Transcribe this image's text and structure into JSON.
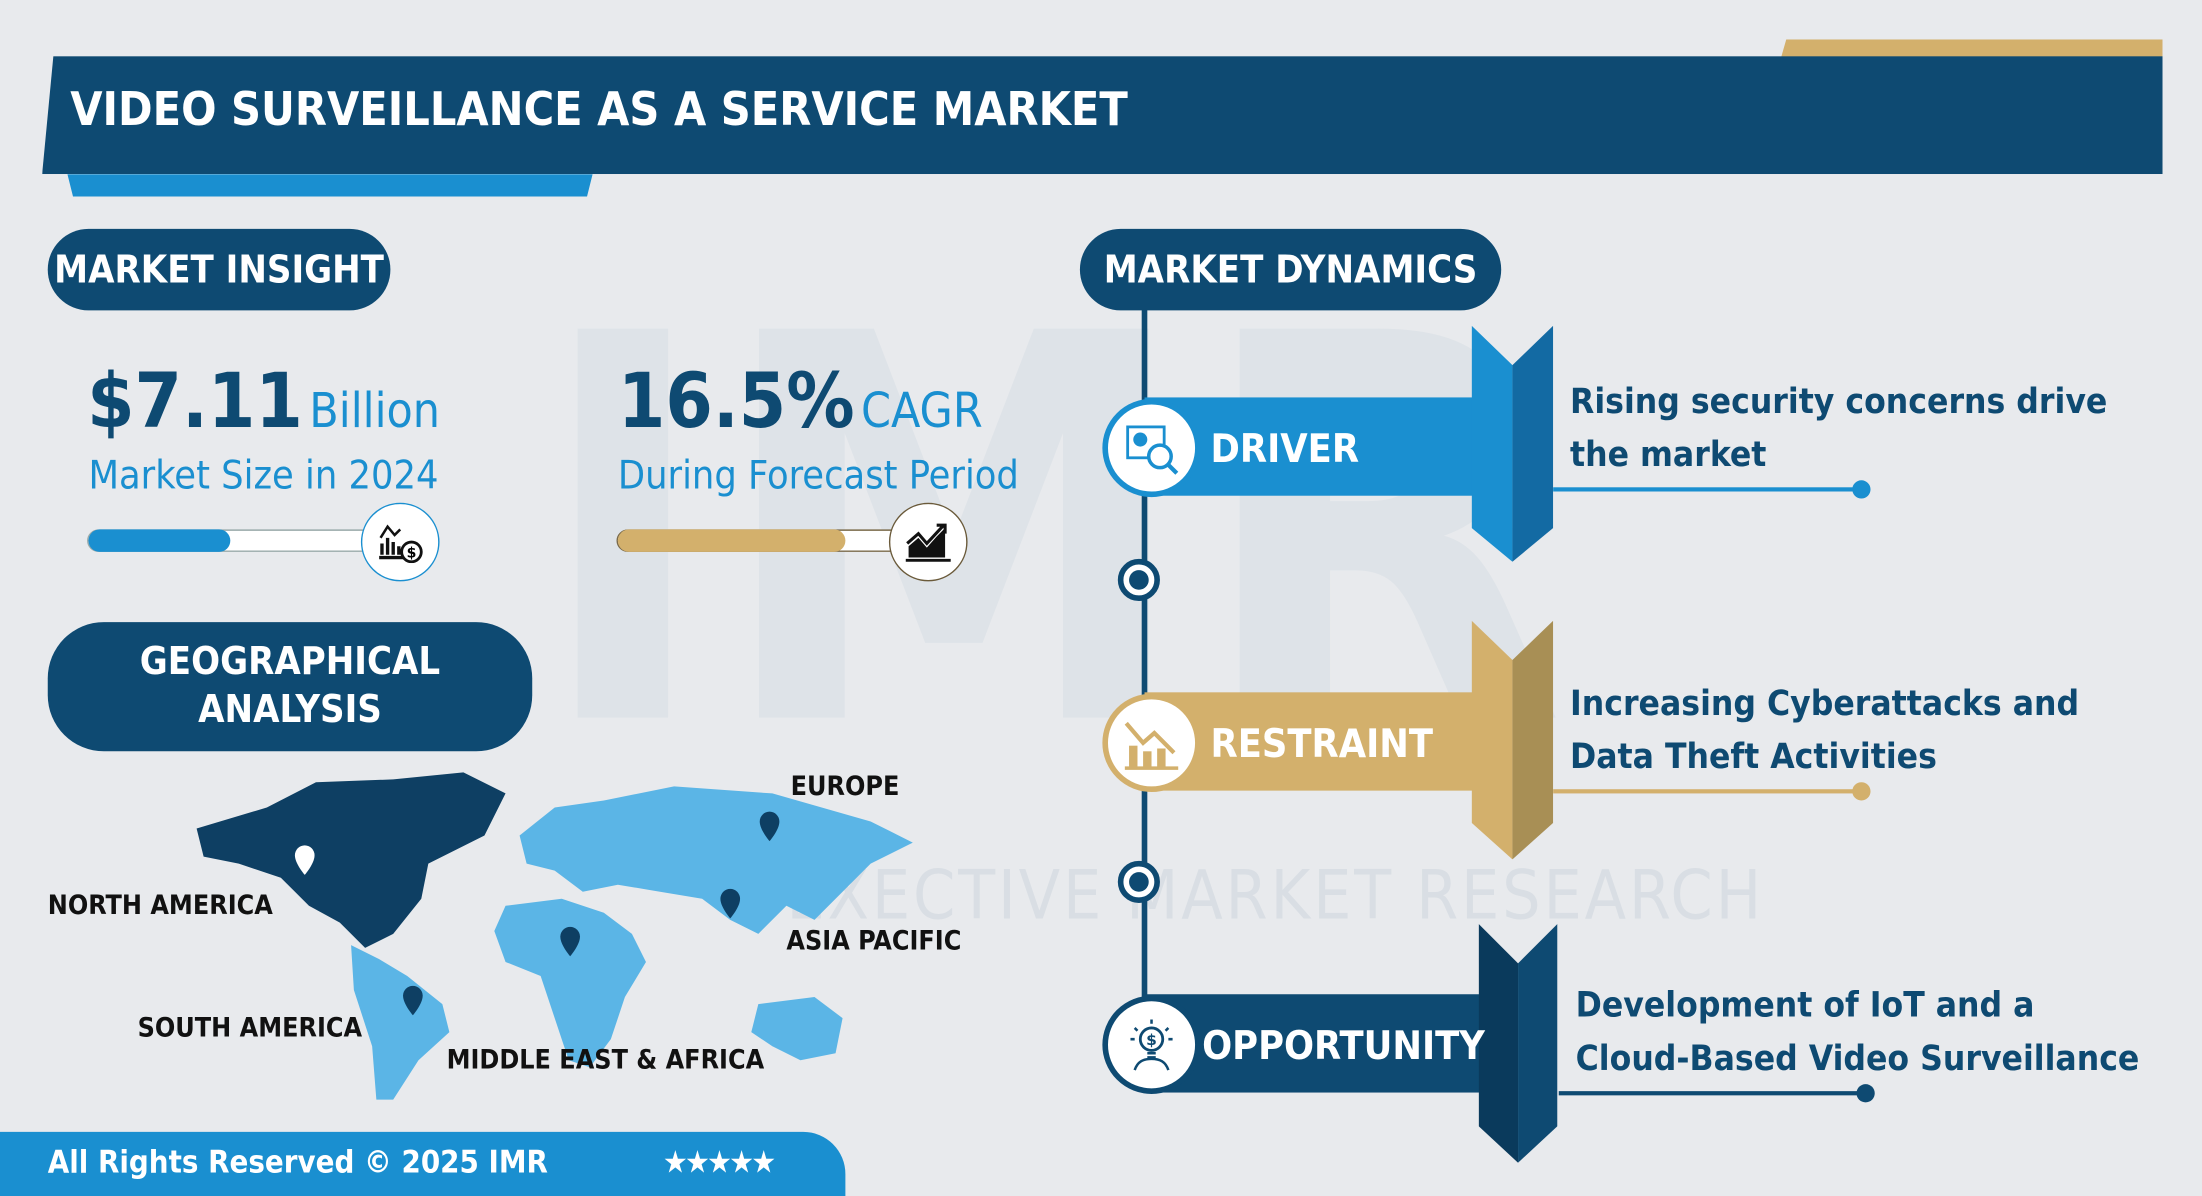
{
  "header": {
    "title": "VIDEO SURVEILLANCE AS A SERVICE MARKET"
  },
  "market_insight": {
    "heading": "MARKET INSIGHT",
    "market_size": {
      "value": "$7.11",
      "unit": "Billion",
      "label": "Market Size in 2024",
      "bar_fill_percent": 48,
      "color": "#1a8fd0",
      "icon": "chart-dollar-icon"
    },
    "cagr": {
      "value": "16.5%",
      "unit": "CAGR",
      "label": "During Forecast Period",
      "bar_fill_percent": 77,
      "color": "#d3b06c",
      "icon": "growth-chart-icon"
    }
  },
  "geographical_analysis": {
    "heading": "GEOGRAPHICAL ANALYSIS",
    "regions": [
      "NORTH AMERICA",
      "SOUTH AMERICA",
      "EUROPE",
      "MIDDLE EAST & AFRICA",
      "ASIA PACIFIC"
    ]
  },
  "market_dynamics": {
    "heading": "MARKET DYNAMICS",
    "items": [
      {
        "label": "DRIVER",
        "text": "Rising security concerns drive the market",
        "color": "#1a8fd0",
        "icon": "analytics-magnifier-icon"
      },
      {
        "label": "RESTRAINT",
        "text": "Increasing Cyberattacks and Data Theft Activities",
        "color": "#d3b06c",
        "icon": "declining-chart-icon"
      },
      {
        "label": "OPPORTUNITY",
        "text": "Development of IoT and a Cloud-Based Video Surveillance",
        "color": "#0e4a72",
        "icon": "lightbulb-dollar-icon"
      }
    ]
  },
  "watermark": {
    "text": "EXECTIVE MARKET RESEARCH",
    "logo": "IMR"
  },
  "footer": {
    "copyright": "All Rights Reserved © 2025 IMR",
    "rating_stars": 5,
    "stars": "★★★★★"
  }
}
